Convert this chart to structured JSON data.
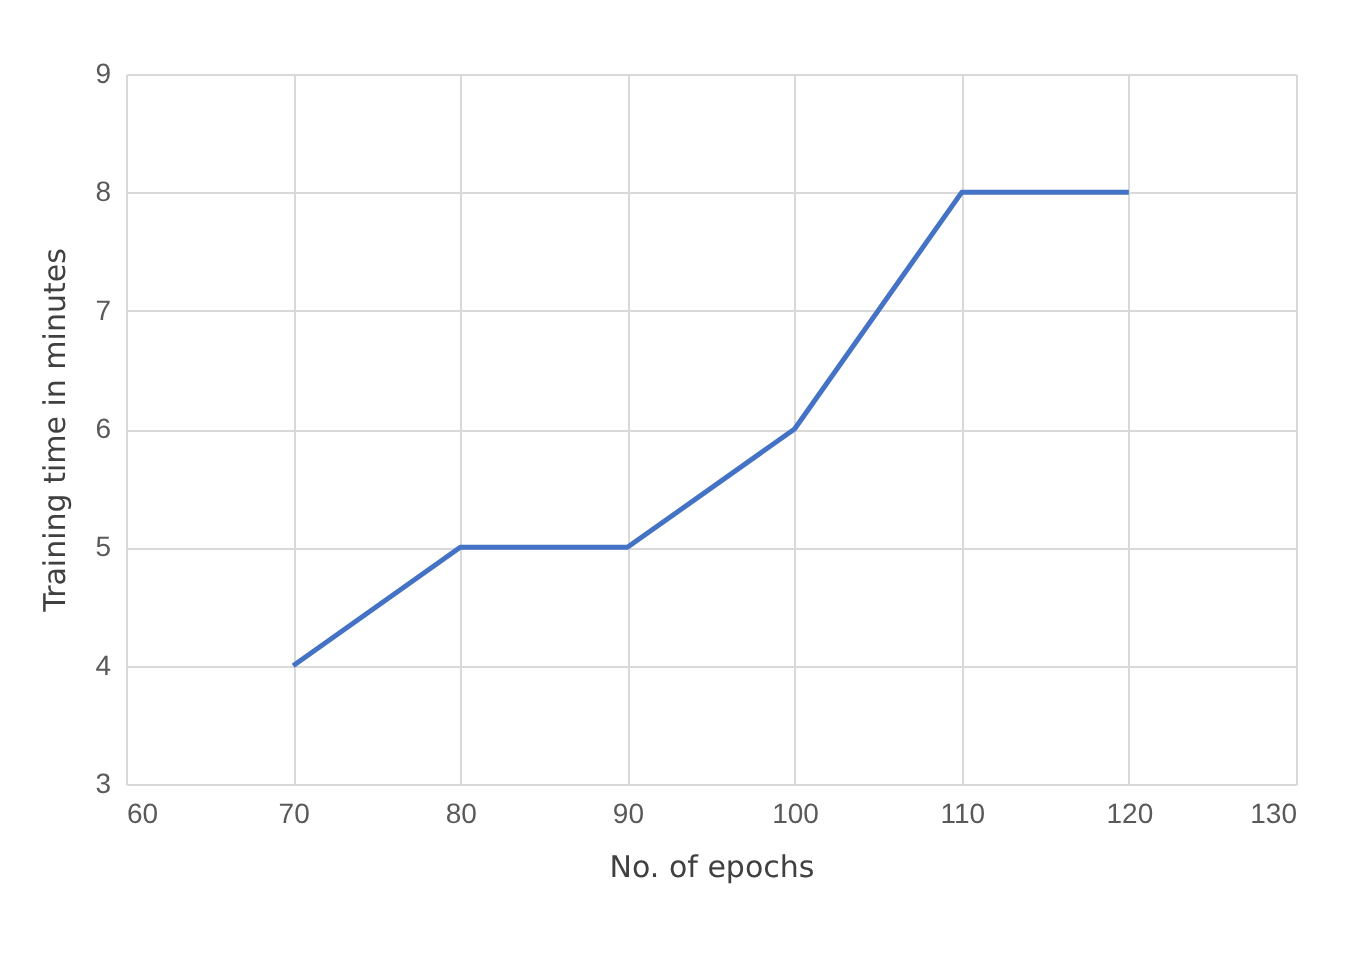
{
  "chart_data": {
    "type": "line",
    "xlabel": "No. of epochs",
    "ylabel": "Training time in minutes",
    "x": [
      70,
      80,
      90,
      100,
      110,
      120
    ],
    "series": [
      {
        "color": "#4472c4",
        "values": [
          4,
          5,
          5,
          6,
          8,
          8
        ]
      }
    ],
    "xlim": [
      60,
      130
    ],
    "xticks": [
      60,
      70,
      80,
      90,
      100,
      110,
      120,
      130
    ],
    "ylim": [
      3,
      9
    ],
    "yticks": [
      3,
      4,
      5,
      6,
      7,
      8,
      9
    ],
    "grid": true,
    "marker": "none",
    "line_style": "solid"
  }
}
